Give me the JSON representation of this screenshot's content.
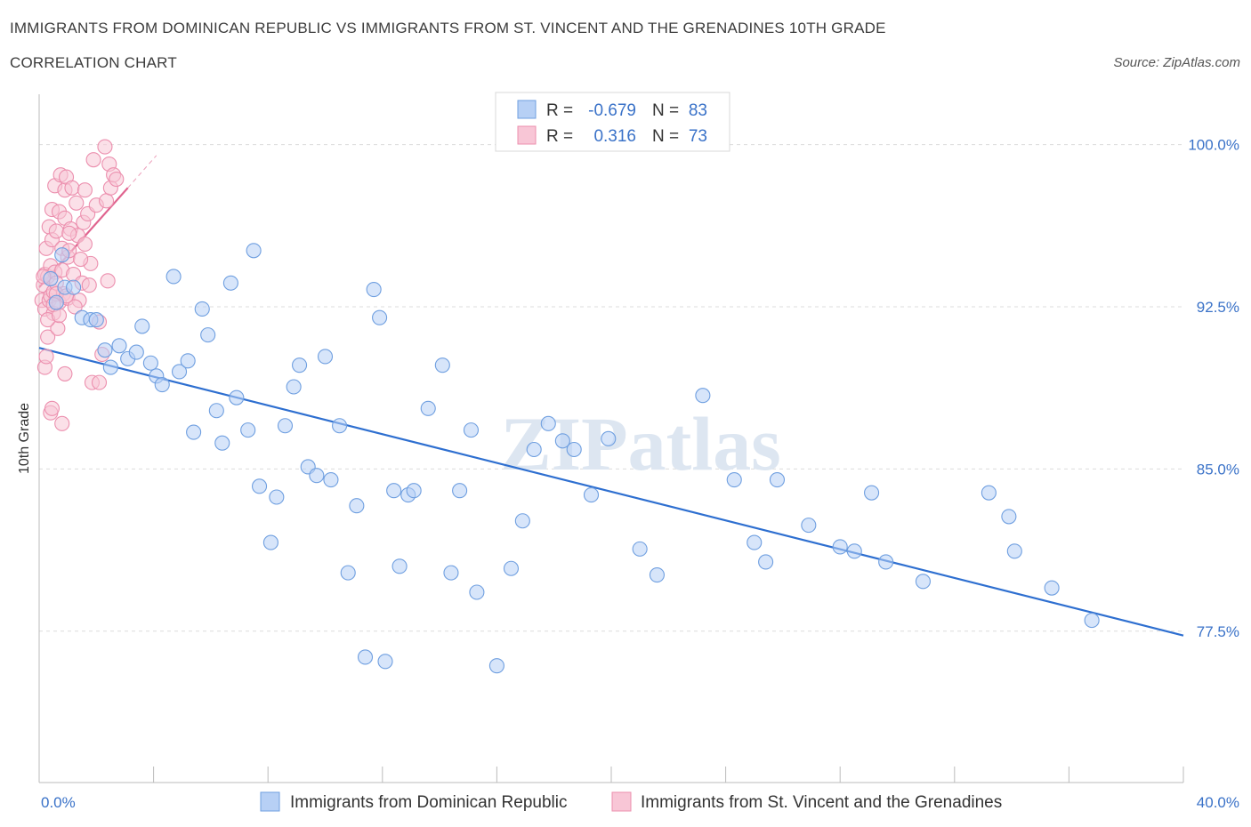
{
  "title_line1": "IMMIGRANTS FROM DOMINICAN REPUBLIC VS IMMIGRANTS FROM ST. VINCENT AND THE GRENADINES 10TH GRADE",
  "title_line2": "CORRELATION CHART",
  "source": "Source: ZipAtlas.com",
  "watermark": "ZIPatlas",
  "colors": {
    "blue": "#6f9fe0",
    "blue_fill": "#b7d0f5",
    "blue_line": "#2e6fd0",
    "pink": "#ec8fae",
    "pink_fill": "#f8c6d6",
    "pink_line": "#e0648f",
    "axis_text": "#3a72c8"
  },
  "chart_data": {
    "type": "scatter",
    "title": "IMMIGRANTS FROM DOMINICAN REPUBLIC VS IMMIGRANTS FROM ST. VINCENT AND THE GRENADINES 10TH GRADE CORRELATION CHART",
    "xlabel": "",
    "ylabel": "10th Grade",
    "xlim": [
      0,
      40
    ],
    "ylim": [
      70.5,
      102
    ],
    "x_tick_labels": [
      "0.0%",
      "40.0%"
    ],
    "y_ticks": [
      100,
      92.5,
      85,
      77.5
    ],
    "y_tick_labels": [
      "100.0%",
      "92.5%",
      "85.0%",
      "77.5%"
    ],
    "grid": true,
    "legend": {
      "placement": "top-center",
      "rows": [
        {
          "r_label": "R =",
          "r_value": "-0.679",
          "n_label": "N =",
          "n_value": "83"
        },
        {
          "r_label": "R =",
          "r_value": "0.316",
          "n_label": "N =",
          "n_value": "73"
        }
      ]
    },
    "series": [
      {
        "name": "Immigrants from Dominican Republic",
        "color": "blue",
        "trend": {
          "x": [
            0,
            40
          ],
          "y": [
            90.6,
            77.3
          ]
        },
        "points": [
          [
            0.4,
            93.8
          ],
          [
            0.6,
            92.7
          ],
          [
            0.9,
            93.4
          ],
          [
            1.5,
            92.0
          ],
          [
            1.8,
            91.9
          ],
          [
            2.3,
            90.5
          ],
          [
            2.5,
            89.7
          ],
          [
            2.8,
            90.7
          ],
          [
            3.1,
            90.1
          ],
          [
            3.4,
            90.4
          ],
          [
            3.9,
            89.9
          ],
          [
            4.1,
            89.3
          ],
          [
            4.3,
            88.9
          ],
          [
            4.7,
            93.9
          ],
          [
            4.9,
            89.5
          ],
          [
            5.2,
            90.0
          ],
          [
            5.4,
            86.7
          ],
          [
            5.7,
            92.4
          ],
          [
            5.9,
            91.2
          ],
          [
            6.2,
            87.7
          ],
          [
            6.4,
            86.2
          ],
          [
            6.7,
            93.6
          ],
          [
            6.9,
            88.3
          ],
          [
            7.3,
            86.8
          ],
          [
            7.5,
            95.1
          ],
          [
            7.7,
            84.2
          ],
          [
            8.1,
            81.6
          ],
          [
            8.3,
            83.7
          ],
          [
            8.6,
            87.0
          ],
          [
            8.9,
            88.8
          ],
          [
            9.1,
            89.8
          ],
          [
            9.4,
            85.1
          ],
          [
            9.7,
            84.7
          ],
          [
            10.0,
            90.2
          ],
          [
            10.2,
            84.5
          ],
          [
            10.5,
            87.0
          ],
          [
            10.8,
            80.2
          ],
          [
            11.1,
            83.3
          ],
          [
            11.4,
            76.3
          ],
          [
            11.7,
            93.3
          ],
          [
            11.9,
            92.0
          ],
          [
            12.1,
            76.1
          ],
          [
            12.4,
            84.0
          ],
          [
            12.6,
            80.5
          ],
          [
            12.9,
            83.8
          ],
          [
            13.1,
            84.0
          ],
          [
            13.6,
            87.8
          ],
          [
            14.1,
            89.8
          ],
          [
            14.4,
            80.2
          ],
          [
            14.7,
            84.0
          ],
          [
            15.1,
            86.8
          ],
          [
            15.3,
            79.3
          ],
          [
            16.0,
            75.9
          ],
          [
            16.5,
            80.4
          ],
          [
            16.9,
            82.6
          ],
          [
            17.3,
            85.9
          ],
          [
            17.8,
            87.1
          ],
          [
            18.3,
            86.3
          ],
          [
            18.7,
            85.9
          ],
          [
            19.3,
            83.8
          ],
          [
            19.9,
            86.4
          ],
          [
            21.0,
            81.3
          ],
          [
            21.6,
            80.1
          ],
          [
            23.2,
            88.4
          ],
          [
            24.3,
            84.5
          ],
          [
            25.0,
            81.6
          ],
          [
            25.4,
            80.7
          ],
          [
            25.8,
            84.5
          ],
          [
            26.9,
            82.4
          ],
          [
            28.0,
            81.4
          ],
          [
            28.5,
            81.2
          ],
          [
            29.1,
            83.9
          ],
          [
            29.6,
            80.7
          ],
          [
            30.9,
            79.8
          ],
          [
            33.2,
            83.9
          ],
          [
            33.9,
            82.8
          ],
          [
            34.1,
            81.2
          ],
          [
            35.4,
            79.5
          ],
          [
            36.8,
            78.0
          ],
          [
            1.2,
            93.4
          ],
          [
            0.8,
            94.9
          ],
          [
            2.0,
            91.9
          ],
          [
            3.6,
            91.6
          ]
        ]
      },
      {
        "name": "Immigrants from St. Vincent and the Grenadines",
        "color": "pink",
        "trend": {
          "x": [
            0,
            3.1
          ],
          "y": [
            93.4,
            98.0
          ],
          "ext_x": [
            3.1,
            4.1
          ],
          "ext_y": [
            98.0,
            99.5
          ]
        },
        "points": [
          [
            0.1,
            92.8
          ],
          [
            0.15,
            93.5
          ],
          [
            0.2,
            94.0
          ],
          [
            0.2,
            92.4
          ],
          [
            0.25,
            95.2
          ],
          [
            0.3,
            91.1
          ],
          [
            0.3,
            93.9
          ],
          [
            0.35,
            96.2
          ],
          [
            0.35,
            92.8
          ],
          [
            0.4,
            94.4
          ],
          [
            0.4,
            93.0
          ],
          [
            0.45,
            95.6
          ],
          [
            0.45,
            97.0
          ],
          [
            0.5,
            93.2
          ],
          [
            0.5,
            92.2
          ],
          [
            0.55,
            98.1
          ],
          [
            0.55,
            94.1
          ],
          [
            0.6,
            96.0
          ],
          [
            0.6,
            93.6
          ],
          [
            0.65,
            91.5
          ],
          [
            0.7,
            92.7
          ],
          [
            0.7,
            96.9
          ],
          [
            0.75,
            98.6
          ],
          [
            0.8,
            95.2
          ],
          [
            0.8,
            94.2
          ],
          [
            0.85,
            93.1
          ],
          [
            0.9,
            96.6
          ],
          [
            0.9,
            97.9
          ],
          [
            0.95,
            98.5
          ],
          [
            1.0,
            94.8
          ],
          [
            1.0,
            92.9
          ],
          [
            1.05,
            95.1
          ],
          [
            1.1,
            96.1
          ],
          [
            1.15,
            98.0
          ],
          [
            1.2,
            94.0
          ],
          [
            1.3,
            97.3
          ],
          [
            1.35,
            95.8
          ],
          [
            1.4,
            92.8
          ],
          [
            1.5,
            93.6
          ],
          [
            1.55,
            96.4
          ],
          [
            1.6,
            97.9
          ],
          [
            1.7,
            96.8
          ],
          [
            1.75,
            93.5
          ],
          [
            1.8,
            94.5
          ],
          [
            1.85,
            89.0
          ],
          [
            1.9,
            99.3
          ],
          [
            2.0,
            97.2
          ],
          [
            2.1,
            91.8
          ],
          [
            2.1,
            89.0
          ],
          [
            2.2,
            90.3
          ],
          [
            2.3,
            99.9
          ],
          [
            2.35,
            97.4
          ],
          [
            2.4,
            93.7
          ],
          [
            2.45,
            99.1
          ],
          [
            0.2,
            89.7
          ],
          [
            0.4,
            87.6
          ],
          [
            0.45,
            87.8
          ],
          [
            0.8,
            87.1
          ],
          [
            0.9,
            89.4
          ],
          [
            2.5,
            98.0
          ],
          [
            2.6,
            98.6
          ],
          [
            2.7,
            98.4
          ],
          [
            0.3,
            91.9
          ],
          [
            0.6,
            93.1
          ],
          [
            1.05,
            95.9
          ],
          [
            0.15,
            93.9
          ],
          [
            0.25,
            90.2
          ],
          [
            0.5,
            92.6
          ],
          [
            1.25,
            92.5
          ],
          [
            0.7,
            92.1
          ],
          [
            1.6,
            95.4
          ],
          [
            0.95,
            93.0
          ],
          [
            1.45,
            94.7
          ]
        ]
      }
    ]
  }
}
